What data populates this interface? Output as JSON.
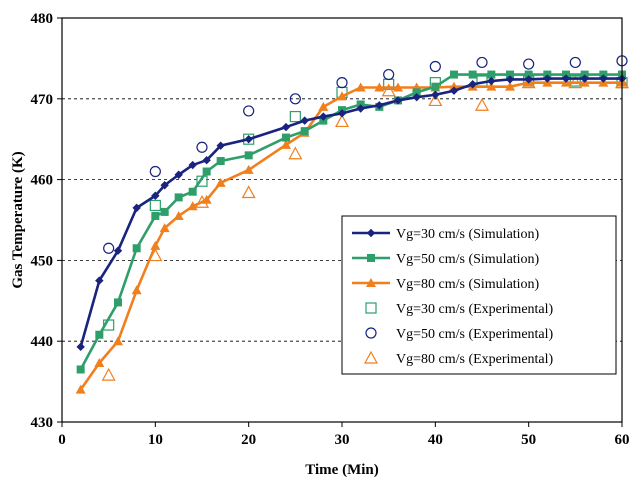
{
  "chart_data": {
    "type": "line",
    "xlabel": "Time (Min)",
    "ylabel": "Gas Temperature (K)",
    "xlim": [
      0,
      60
    ],
    "ylim": [
      430,
      480
    ],
    "xticks": [
      0,
      10,
      20,
      30,
      40,
      50,
      60
    ],
    "yticks": [
      430,
      440,
      450,
      460,
      470,
      480
    ],
    "grid": "horizontal dashed",
    "legend_position": "lower-right",
    "series": [
      {
        "name": "Vg=30 cm/s (Simulation)",
        "kind": "line",
        "marker": "diamond",
        "color": "#1a237e",
        "x": [
          2,
          4,
          6,
          8,
          10,
          11,
          12.5,
          14,
          15.5,
          17,
          20,
          24,
          26,
          28,
          30,
          32,
          34,
          36,
          38,
          40,
          42,
          44,
          46,
          48,
          50,
          52,
          54,
          56,
          58,
          60
        ],
        "y": [
          439.3,
          447.5,
          451.2,
          456.5,
          458.0,
          459.3,
          460.6,
          461.8,
          462.4,
          464.2,
          465.0,
          466.5,
          467.3,
          467.8,
          468.2,
          468.8,
          469.2,
          469.8,
          470.2,
          470.5,
          471.0,
          471.8,
          472.2,
          472.4,
          472.4,
          472.5,
          472.5,
          472.5,
          472.5,
          472.5
        ]
      },
      {
        "name": "Vg=50 cm/s (Simulation)",
        "kind": "line",
        "marker": "square",
        "color": "#2e9e6b",
        "x": [
          2,
          4,
          6,
          8,
          10,
          11,
          12.5,
          14,
          15.5,
          17,
          20,
          24,
          26,
          28,
          30,
          32,
          34,
          36,
          38,
          40,
          42,
          44,
          46,
          48,
          50,
          52,
          54,
          56,
          58,
          60
        ],
        "y": [
          436.5,
          440.8,
          444.8,
          451.5,
          455.5,
          456.0,
          457.8,
          458.5,
          461.0,
          462.3,
          463.0,
          465.2,
          466.0,
          467.3,
          468.6,
          469.3,
          469.0,
          469.8,
          470.8,
          471.5,
          473.0,
          473.0,
          473.0,
          473.0,
          473.0,
          473.0,
          473.0,
          473.0,
          473.0,
          473.0
        ]
      },
      {
        "name": "Vg=80 cm/s (Simulation)",
        "kind": "line",
        "marker": "triangle",
        "color": "#f07f1e",
        "x": [
          2,
          4,
          6,
          8,
          10,
          11,
          12.5,
          14,
          15.5,
          17,
          20,
          24,
          26,
          28,
          30,
          32,
          34,
          36,
          38,
          40,
          42,
          44,
          46,
          48,
          50,
          52,
          54,
          56,
          58,
          60
        ],
        "y": [
          434.0,
          437.3,
          440.0,
          446.3,
          451.8,
          454.0,
          455.5,
          456.7,
          457.5,
          459.6,
          461.2,
          464.3,
          465.8,
          469.0,
          470.3,
          471.4,
          471.4,
          471.4,
          471.4,
          471.4,
          471.5,
          471.5,
          471.5,
          471.5,
          472.0,
          472.0,
          472.0,
          472.0,
          472.0,
          472.0
        ]
      },
      {
        "name": "Vg=30 cm/s (Experimental)",
        "kind": "scatter",
        "marker": "square-open",
        "color": "#2e9e6b",
        "x": [
          5,
          10,
          15,
          20,
          25,
          30,
          35,
          40,
          45,
          50,
          55,
          60
        ],
        "y": [
          442.0,
          456.8,
          459.8,
          465.0,
          467.8,
          470.8,
          471.8,
          472.0,
          472.2,
          472.2,
          472.2,
          472.0
        ]
      },
      {
        "name": "Vg=50 cm/s (Experimental)",
        "kind": "scatter",
        "marker": "circle-open",
        "color": "#1a237e",
        "x": [
          5,
          10,
          15,
          20,
          25,
          30,
          35,
          40,
          45,
          50,
          55,
          60
        ],
        "y": [
          451.5,
          461.0,
          464.0,
          468.5,
          470.0,
          472.0,
          473.0,
          474.0,
          474.5,
          474.3,
          474.5,
          474.7
        ]
      },
      {
        "name": "Vg=80 cm/s (Experimental)",
        "kind": "scatter",
        "marker": "triangle-open",
        "color": "#f07f1e",
        "x": [
          5,
          10,
          15,
          20,
          25,
          30,
          35,
          40,
          45,
          50,
          55,
          60
        ],
        "y": [
          435.8,
          450.6,
          457.2,
          458.4,
          463.2,
          467.2,
          471.0,
          469.8,
          469.2,
          472.0,
          472.0,
          472.0
        ]
      }
    ]
  }
}
